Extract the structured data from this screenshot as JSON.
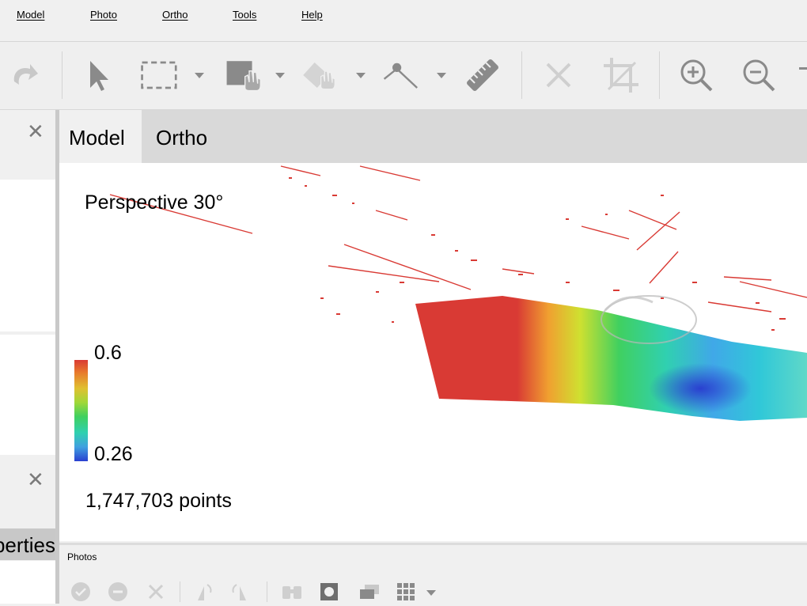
{
  "menu": [
    "Model",
    "Photo",
    "Ortho",
    "Tools",
    "Help"
  ],
  "toolbar": {
    "buttons": [
      "redo-icon",
      "select-pointer-icon",
      "rectangle-selection-icon",
      "draw-polygon-icon",
      "shape-select-icon",
      "ruler-point-icon",
      "ruler-icon",
      "delete-icon",
      "crop-icon",
      "zoom-in-icon",
      "zoom-out-icon"
    ]
  },
  "tabs": [
    "Model",
    "Ortho"
  ],
  "viewport": {
    "projection": "Perspective 30°",
    "legend_max": "0.6",
    "legend_min": "0.26",
    "point_count": "1,747,703 points"
  },
  "left_dock": {
    "properties_tab": "Properties"
  },
  "photos_panel": {
    "title": "Photos"
  },
  "colors": {
    "accent_red": "#d93a34",
    "tab_active": "#f0f0f0",
    "tab_bar": "#d9d9d9"
  }
}
